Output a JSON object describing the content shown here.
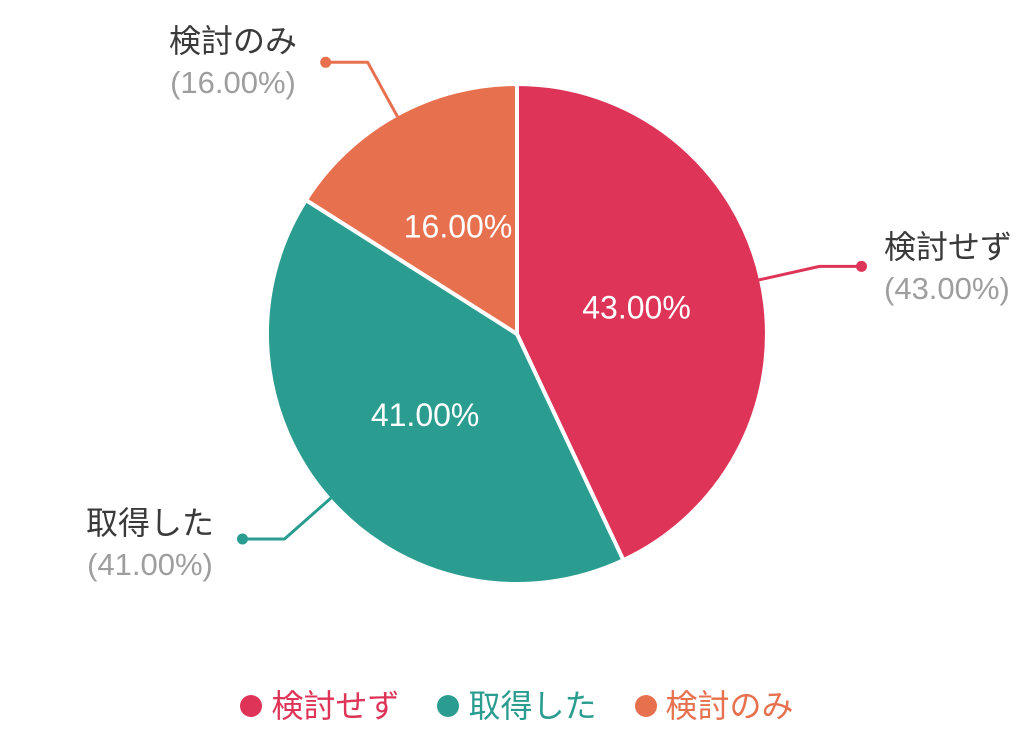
{
  "chart_data": {
    "type": "pie",
    "title": "",
    "categories": [
      "検討せず",
      "取得した",
      "検討のみ"
    ],
    "values": [
      43,
      41,
      16
    ],
    "series": [
      {
        "name": "検討せず",
        "value": 43,
        "inner_label": "43.00%",
        "outer_sublabel": "(43.00%)",
        "color": "#DE3458"
      },
      {
        "name": "取得した",
        "value": 41,
        "inner_label": "41.00%",
        "outer_sublabel": "(41.00%)",
        "color": "#2A9D90"
      },
      {
        "name": "検討のみ",
        "value": 16,
        "inner_label": "16.00%",
        "outer_sublabel": "(16.00%)",
        "color": "#E7704F"
      }
    ],
    "start_angle": "12-oclock",
    "direction": "clockwise",
    "legend_position": "bottom",
    "background": "#FFFFFF",
    "label_colors": {
      "outer_name": "#3A3A3A",
      "outer_percent": "#9E9E9E",
      "inside": "#FFFFFF"
    }
  }
}
